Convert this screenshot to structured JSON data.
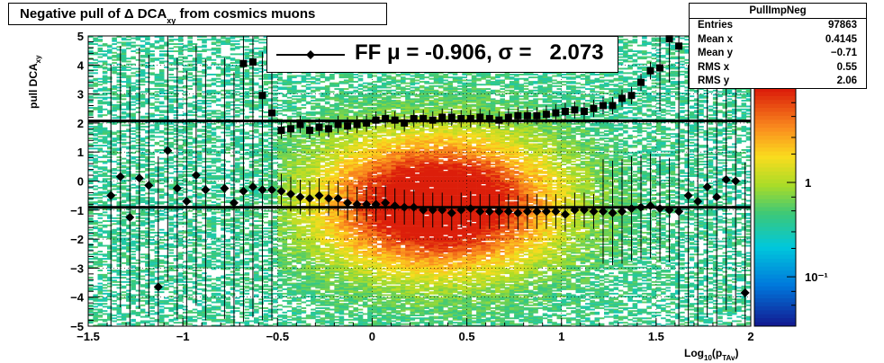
{
  "title": {
    "main": "Negative pull of Δ DCA",
    "sub": "xy",
    "tail": " from cosmics muons"
  },
  "stats": {
    "name": "PullImpNeg",
    "entries_label": "Entries",
    "entries": "97863",
    "meanx_label": "Mean x",
    "meanx": "0.4145",
    "meany_label": "Mean y",
    "meany": "−0.71",
    "rmsx_label": "RMS x",
    "rmsx": "0.55",
    "rmsy_label": "RMS y",
    "rmsy": "2.06"
  },
  "fit_label": "FF μ = -0.906, σ =   2.073",
  "colors": {
    "marker": "#000000",
    "fitline": "#000000"
  },
  "chart_data": {
    "type": "scatter",
    "xlabel_main": "Log",
    "xlabel_sub1": "10",
    "xlabel_mid": "(p",
    "xlabel_sub2": "TAv",
    "xlabel_end": ")",
    "ylabel_main": "pull DCA",
    "ylabel_sub": "xy",
    "xlim": [
      -1.5,
      2.0
    ],
    "ylim": [
      -5,
      5
    ],
    "x_ticks": [
      "−1.5",
      "−1",
      "−0.5",
      "0",
      "0.5",
      "1",
      "1.5",
      "2"
    ],
    "y_ticks": [
      "−5",
      "−4",
      "−3",
      "−2",
      "−1",
      "0",
      "1",
      "2",
      "3",
      "4",
      "5"
    ],
    "z_scale": "log",
    "z_ticks": [
      {
        "label": "1",
        "value": 1
      },
      {
        "label": "10⁻¹",
        "value": 0.1
      }
    ],
    "z_range": [
      0.03,
      10
    ],
    "grid": true,
    "hlines": [
      2.07,
      -0.906
    ],
    "series": [
      {
        "marker": "diamond",
        "points": [
          [
            -1.38,
            -0.5
          ],
          [
            -1.33,
            0.15
          ],
          [
            -1.28,
            -1.25
          ],
          [
            -1.23,
            0.1
          ],
          [
            -1.18,
            -0.15
          ],
          [
            -1.13,
            -3.65
          ],
          [
            -1.08,
            1.05
          ],
          [
            -1.03,
            -0.25
          ],
          [
            -0.98,
            -0.7
          ],
          [
            -0.93,
            0.2
          ],
          [
            -0.88,
            -0.3
          ],
          [
            -0.78,
            -0.25
          ],
          [
            -0.73,
            -0.75
          ],
          [
            -0.68,
            -0.35
          ],
          [
            -0.63,
            -0.2
          ],
          [
            -0.58,
            -0.3
          ],
          [
            -0.53,
            -0.3
          ],
          [
            -0.48,
            -0.35
          ],
          [
            -0.43,
            -0.45
          ],
          [
            -0.38,
            -0.55
          ],
          [
            -0.33,
            -0.6
          ],
          [
            -0.28,
            -0.5
          ],
          [
            -0.23,
            -0.6
          ],
          [
            -0.18,
            -0.6
          ],
          [
            -0.13,
            -0.75
          ],
          [
            -0.08,
            -0.8
          ],
          [
            -0.03,
            -0.8
          ],
          [
            0.02,
            -0.8
          ],
          [
            0.07,
            -0.75
          ],
          [
            0.12,
            -0.85
          ],
          [
            0.17,
            -0.9
          ],
          [
            0.22,
            -0.9
          ],
          [
            0.27,
            -1.0
          ],
          [
            0.32,
            -1.0
          ],
          [
            0.37,
            -1.0
          ],
          [
            0.42,
            -1.1
          ],
          [
            0.47,
            -1.0
          ],
          [
            0.52,
            -0.95
          ],
          [
            0.57,
            -1.05
          ],
          [
            0.62,
            -1.05
          ],
          [
            0.67,
            -1.05
          ],
          [
            0.72,
            -1.05
          ],
          [
            0.77,
            -1.1
          ],
          [
            0.82,
            -1.05
          ],
          [
            0.87,
            -1.05
          ],
          [
            0.92,
            -1.05
          ],
          [
            0.97,
            -1.05
          ],
          [
            1.02,
            -1.15
          ],
          [
            1.07,
            -1.0
          ],
          [
            1.12,
            -1.0
          ],
          [
            1.17,
            -1.05
          ],
          [
            1.22,
            -1.05
          ],
          [
            1.27,
            -1.1
          ],
          [
            1.32,
            -1.05
          ],
          [
            1.37,
            -0.95
          ],
          [
            1.42,
            -0.9
          ],
          [
            1.47,
            -0.85
          ],
          [
            1.52,
            -0.95
          ],
          [
            1.57,
            -1.0
          ],
          [
            1.62,
            -1.05
          ],
          [
            1.67,
            -0.5
          ],
          [
            1.72,
            -0.7
          ],
          [
            1.77,
            -0.2
          ],
          [
            1.82,
            -0.55
          ],
          [
            1.87,
            0.05
          ],
          [
            1.92,
            0.0
          ],
          [
            1.97,
            -3.85
          ]
        ]
      },
      {
        "marker": "square",
        "points": [
          [
            -0.68,
            4.05
          ],
          [
            -0.63,
            4.1
          ],
          [
            -0.58,
            2.95
          ],
          [
            -0.53,
            2.35
          ],
          [
            -0.48,
            1.75
          ],
          [
            -0.43,
            1.8
          ],
          [
            -0.38,
            1.95
          ],
          [
            -0.33,
            1.75
          ],
          [
            -0.28,
            1.85
          ],
          [
            -0.23,
            1.8
          ],
          [
            -0.18,
            1.95
          ],
          [
            -0.13,
            1.9
          ],
          [
            -0.08,
            1.95
          ],
          [
            -0.03,
            2.0
          ],
          [
            0.02,
            2.1
          ],
          [
            0.07,
            2.15
          ],
          [
            0.12,
            2.1
          ],
          [
            0.17,
            2.0
          ],
          [
            0.22,
            2.15
          ],
          [
            0.27,
            2.15
          ],
          [
            0.32,
            2.1
          ],
          [
            0.37,
            2.2
          ],
          [
            0.42,
            2.2
          ],
          [
            0.47,
            2.15
          ],
          [
            0.52,
            2.15
          ],
          [
            0.57,
            2.2
          ],
          [
            0.62,
            2.15
          ],
          [
            0.67,
            2.1
          ],
          [
            0.72,
            2.2
          ],
          [
            0.77,
            2.25
          ],
          [
            0.82,
            2.25
          ],
          [
            0.87,
            2.25
          ],
          [
            0.92,
            2.3
          ],
          [
            0.97,
            2.35
          ],
          [
            1.02,
            2.4
          ],
          [
            1.07,
            2.45
          ],
          [
            1.12,
            2.4
          ],
          [
            1.17,
            2.5
          ],
          [
            1.22,
            2.6
          ],
          [
            1.27,
            2.6
          ],
          [
            1.32,
            2.85
          ],
          [
            1.37,
            2.95
          ],
          [
            1.42,
            3.4
          ],
          [
            1.47,
            3.8
          ],
          [
            1.52,
            3.9
          ],
          [
            1.57,
            4.9
          ],
          [
            1.62,
            4.65
          ]
        ]
      }
    ]
  }
}
